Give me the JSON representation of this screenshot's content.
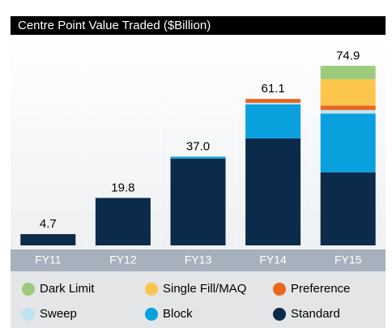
{
  "chart_data": {
    "type": "stacked_bar",
    "title": "Centre Point Value Traded ($Billion)",
    "categories": [
      "FY11",
      "FY12",
      "FY13",
      "FY14",
      "FY15"
    ],
    "series": [
      {
        "name": "Dark Limit",
        "color": "#9dcb7c",
        "values": [
          0,
          0,
          0,
          0,
          5.6
        ]
      },
      {
        "name": "Single Fill/MAQ",
        "color": "#fcc64d",
        "values": [
          0,
          0,
          0,
          0,
          11.0
        ]
      },
      {
        "name": "Preference",
        "color": "#e8661c",
        "values": [
          0,
          0,
          0,
          1.6,
          1.8
        ]
      },
      {
        "name": "Sweep",
        "color": "#bde3f3",
        "values": [
          0,
          0,
          0,
          0.7,
          1.5
        ]
      },
      {
        "name": "Block",
        "color": "#0aa0dd",
        "values": [
          0,
          0,
          0.8,
          14.2,
          24.5
        ]
      },
      {
        "name": "Standard",
        "color": "#0c2a4a",
        "values": [
          4.7,
          19.8,
          36.2,
          44.6,
          30.5
        ]
      }
    ],
    "totals": [
      4.7,
      19.8,
      37,
      61.1,
      74.9
    ],
    "total_labels": [
      "4.7",
      "19.8",
      "37.0",
      "61.1",
      "74.9"
    ]
  }
}
